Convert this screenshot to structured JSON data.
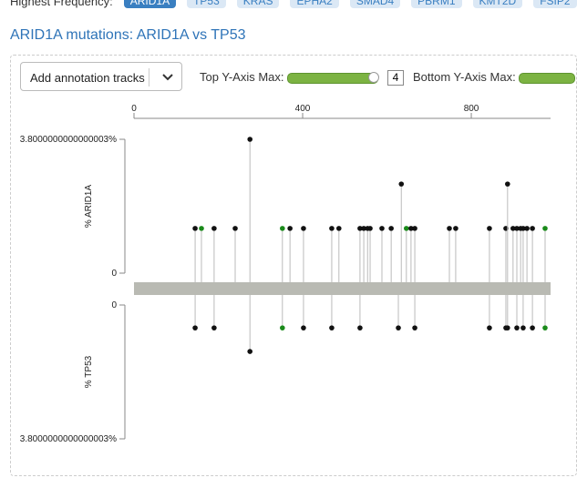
{
  "header": {
    "label": "Highest Frequency:",
    "genes": [
      "ARID1A",
      "TP53",
      "KRAS",
      "EPHA2",
      "SMAD4",
      "PBRM1",
      "KMT2D",
      "FSIP2"
    ]
  },
  "title": "ARID1A mutations: ARID1A vs TP53",
  "controls": {
    "annotation_dropdown": "Add annotation tracks",
    "top_y_max_label": "Top Y-Axis Max:",
    "top_y_max_value": 4,
    "bottom_y_max_label": "Bottom Y-Axis Max:"
  },
  "chart_data": {
    "type": "lollipop",
    "xlim": [
      0,
      988
    ],
    "xticks": [
      0,
      400,
      800
    ],
    "series": [
      {
        "ylabel": "% ARID1A",
        "ylim": [
          0,
          3.8000000000000003
        ],
        "yticks": [
          0,
          {
            "value": 3.8000000000000003,
            "label": "3.8000000000000003%"
          }
        ],
        "x": [
          145,
          160,
          190,
          240,
          275,
          352,
          370,
          402,
          469,
          486,
          536,
          545,
          554,
          560,
          588,
          610,
          634,
          646,
          657,
          666,
          748,
          763,
          843,
          882,
          886,
          899,
          908,
          917,
          923,
          932,
          945,
          975
        ],
        "values": [
          1.27,
          1.27,
          1.27,
          1.27,
          3.8,
          1.27,
          1.27,
          1.27,
          1.27,
          1.27,
          1.27,
          1.27,
          1.27,
          1.27,
          1.27,
          1.27,
          2.53,
          1.27,
          1.27,
          1.27,
          1.27,
          1.27,
          1.27,
          1.27,
          2.53,
          1.27,
          1.27,
          1.27,
          1.27,
          1.27,
          1.27,
          1.27
        ],
        "colors": [
          "#111",
          "#1a8a1a",
          "#111",
          "#111",
          "#111",
          "#1a8a1a",
          "#111",
          "#111",
          "#111",
          "#111",
          "#111",
          "#111",
          "#111",
          "#111",
          "#111",
          "#111",
          "#111",
          "#1a8a1a",
          "#111",
          "#111",
          "#111",
          "#111",
          "#111",
          "#111",
          "#111",
          "#111",
          "#111",
          "#111",
          "#111",
          "#111",
          "#111",
          "#1a8a1a"
        ]
      },
      {
        "ylabel": "% TP53",
        "ylim": [
          0,
          3.8000000000000003
        ],
        "yticks": [
          0,
          {
            "value": 3.8000000000000003,
            "label": "3.8000000000000003%"
          }
        ],
        "x": [
          145,
          190,
          275,
          352,
          402,
          469,
          536,
          627,
          666,
          843,
          882,
          886,
          908,
          923,
          945,
          975
        ],
        "values": [
          0.65,
          0.65,
          1.32,
          0.65,
          0.65,
          0.65,
          0.65,
          0.65,
          0.65,
          0.65,
          0.65,
          0.65,
          0.65,
          0.65,
          0.65,
          0.65
        ],
        "colors": [
          "#111",
          "#111",
          "#111",
          "#1a8a1a",
          "#111",
          "#111",
          "#111",
          "#111",
          "#111",
          "#111",
          "#111",
          "#111",
          "#111",
          "#111",
          "#111",
          "#1a8a1a"
        ]
      }
    ]
  }
}
